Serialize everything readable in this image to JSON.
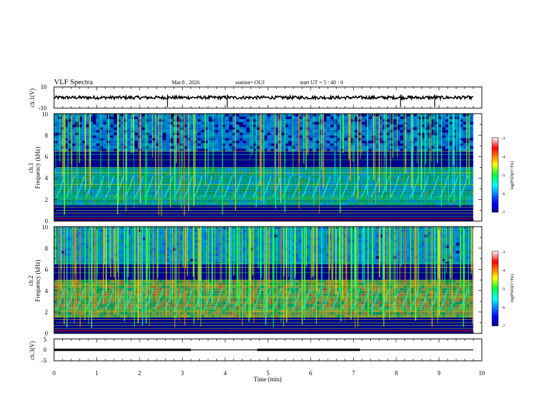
{
  "header": {
    "title": "VLF Spectra",
    "date": "Mar.8  , 2026",
    "station": "station= OUJ",
    "start": "start  UT =   5 : 40 : 0"
  },
  "colors": {
    "background": "#ffffff",
    "axis": "#000000",
    "spectrogram_floor": "#00008c",
    "hot": "#cc0000"
  },
  "chart_data": [
    {
      "type": "line",
      "panel": "ch1-waveform",
      "ylabel": "ch.1(V)",
      "ylim": [
        -10,
        10
      ],
      "yticks": [
        "10",
        "-10"
      ],
      "xlim": [
        0,
        10
      ],
      "series": [
        {
          "name": "ch.1",
          "mean": 0,
          "noise_band": [
            -1.5,
            1.5
          ],
          "spikes_min": [
            2.65,
            4.05,
            8.1,
            8.9
          ]
        }
      ]
    },
    {
      "type": "heatmap",
      "panel": "ch1-spectrogram",
      "title": "ch.1 Frequency (kHz)",
      "ylabel": "ch.1",
      "ylabel2": "Frequency (kHz)",
      "ylim": [
        0,
        10
      ],
      "yticks": [
        "0",
        "2",
        "4",
        "6",
        "8",
        "10"
      ],
      "xlim": [
        0,
        10
      ],
      "colorbar": {
        "label": "log(PSD)(V²/Hz)",
        "range": [
          -7,
          -3
        ],
        "ticks": [
          "-3",
          "-4",
          "-5",
          "-6",
          "-7"
        ]
      }
    },
    {
      "type": "heatmap",
      "panel": "ch2-spectrogram",
      "title": "ch.2 Frequency (kHz)",
      "ylabel": "ch.2",
      "ylabel2": "Frequency (kHz)",
      "ylim": [
        0,
        10
      ],
      "yticks": [
        "0",
        "2",
        "4",
        "6",
        "8",
        "10"
      ],
      "xlim": [
        0,
        10
      ],
      "colorbar": {
        "label": "log(PSD)(V²/Hz)",
        "range": [
          -7,
          -3
        ],
        "ticks": [
          "-3",
          "-4",
          "-5",
          "-6",
          "-7"
        ]
      }
    },
    {
      "type": "line",
      "panel": "ch3-level",
      "ylabel": "ch.3(V)",
      "ylim": [
        -5,
        5
      ],
      "yticks": [
        "5",
        "0",
        "-5"
      ],
      "xlim": [
        0,
        10
      ],
      "series": [
        {
          "name": "ch.3",
          "value": 0,
          "thick_segments_min": [
            [
              0,
              3.2
            ],
            [
              4.75,
              7.15
            ]
          ]
        }
      ]
    }
  ],
  "xaxis": {
    "label": "Time  (min)",
    "ticks": [
      "0",
      "1",
      "2",
      "3",
      "4",
      "5",
      "6",
      "7",
      "8",
      "9",
      "10"
    ]
  }
}
